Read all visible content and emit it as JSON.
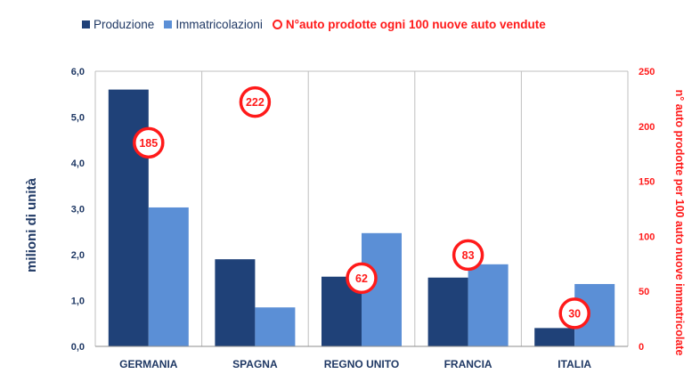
{
  "chart_data": {
    "type": "bar",
    "categories": [
      "GERMANIA",
      "SPAGNA",
      "REGNO UNITO",
      "FRANCIA",
      "ITALIA"
    ],
    "series": [
      {
        "name": "Produzione",
        "values": [
          5.6,
          1.9,
          1.52,
          1.5,
          0.4
        ],
        "color": "#1f4178",
        "axis": "left"
      },
      {
        "name": "Immatricolazioni",
        "values": [
          3.03,
          0.85,
          2.47,
          1.79,
          1.36
        ],
        "color": "#5b8fd6",
        "axis": "left"
      }
    ],
    "ratio_series": {
      "name": "N°auto prodotte ogni 100 nuove auto vendute",
      "values": [
        185,
        222,
        62,
        83,
        30
      ],
      "labels": [
        "185",
        "222",
        "62",
        "83",
        "30"
      ],
      "color": "#ff1a1a",
      "axis": "right"
    },
    "ylabel": "milioni di unità",
    "ylim": [
      0,
      6
    ],
    "yticks": [
      "0,0",
      "1,0",
      "2,0",
      "3,0",
      "4,0",
      "5,0",
      "6,0"
    ],
    "y2label": "n° auto prodotte per 100 auto nuove immatricolate",
    "y2lim": [
      0,
      250
    ],
    "y2ticks": [
      "0",
      "50",
      "100",
      "150",
      "200",
      "250"
    ],
    "grid": "vertical category separators",
    "legend": "top-left"
  }
}
